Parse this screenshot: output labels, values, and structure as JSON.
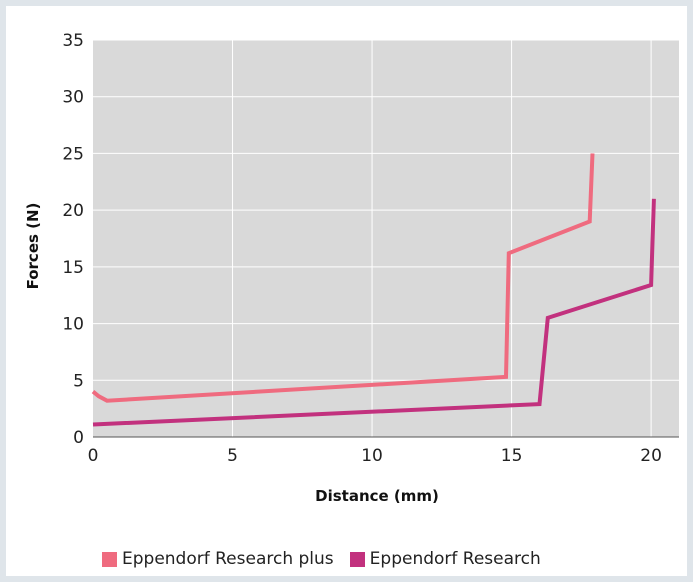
{
  "chart_data": {
    "type": "line",
    "xlabel": "Distance (mm)",
    "ylabel": "Forces (N)",
    "xlim": [
      0,
      21
    ],
    "ylim": [
      0,
      35
    ],
    "xticks": [
      0,
      5,
      10,
      15,
      20
    ],
    "yticks": [
      0,
      5,
      10,
      15,
      20,
      25,
      30,
      35
    ],
    "grid": true,
    "legend_position": "bottom",
    "series": [
      {
        "name": "Eppendorf Research plus",
        "color": "#ef6b7f",
        "points": [
          [
            0,
            4
          ],
          [
            0.2,
            3.6
          ],
          [
            0.5,
            3.2
          ],
          [
            14.8,
            5.3
          ],
          [
            14.9,
            16.2
          ],
          [
            17.8,
            19
          ],
          [
            17.9,
            25
          ]
        ]
      },
      {
        "name": "Eppendorf Research",
        "color": "#c2317e",
        "points": [
          [
            0,
            1.1
          ],
          [
            16,
            2.9
          ],
          [
            16.3,
            10.5
          ],
          [
            20,
            13.4
          ],
          [
            20.1,
            21
          ]
        ]
      }
    ]
  }
}
